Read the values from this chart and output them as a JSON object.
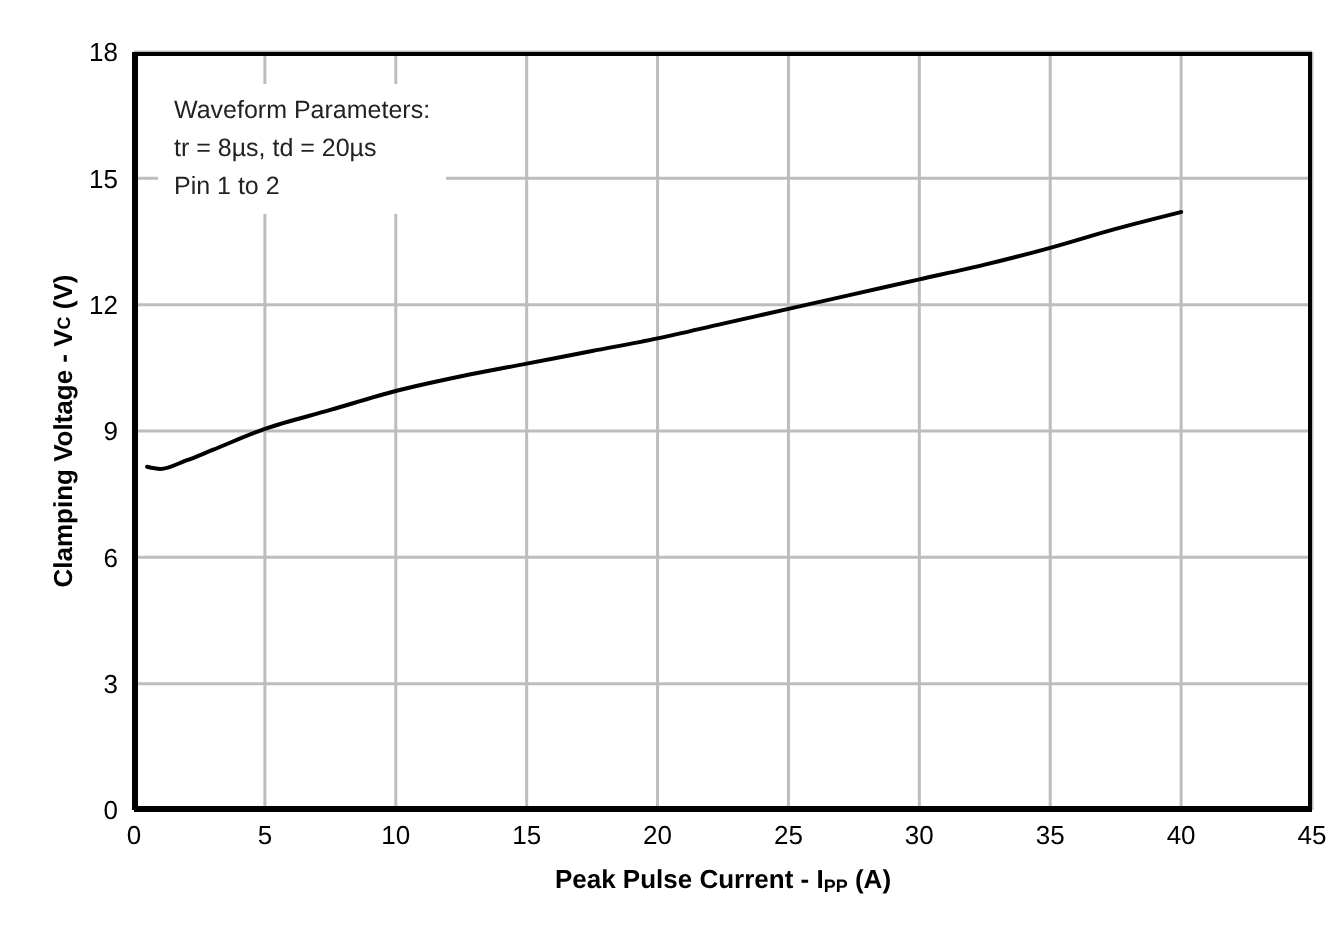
{
  "chart_data": {
    "type": "line",
    "xlabel": "Peak Pulse Current - I$_{PP}$ (A)",
    "ylabel": "Clamping Voltage - V$_{C}$ (V)",
    "annotations": [
      "Waveform Parameters:",
      "tr = 8µs, td = 20µs",
      "Pin 1 to 2"
    ],
    "x": [
      0.5,
      1,
      2,
      3,
      5,
      7.5,
      10,
      12.5,
      15,
      17.5,
      20,
      22.5,
      25,
      27.5,
      30,
      32.5,
      35,
      37.5,
      40
    ],
    "series": [
      {
        "color": "#000000",
        "values": [
          8.15,
          8.1,
          8.3,
          8.55,
          9.05,
          9.5,
          9.95,
          10.3,
          10.6,
          10.9,
          11.2,
          11.55,
          11.9,
          12.25,
          12.6,
          12.95,
          13.35,
          13.8,
          14.2
        ]
      }
    ],
    "xlim": [
      0,
      45
    ],
    "xticks": [
      0,
      5,
      10,
      15,
      20,
      25,
      30,
      35,
      40,
      45
    ],
    "ylim": [
      0,
      18
    ],
    "yticks": [
      0,
      3,
      6,
      9,
      12,
      15,
      18
    ],
    "grid": true,
    "marker": "none",
    "line_style": "solid"
  }
}
